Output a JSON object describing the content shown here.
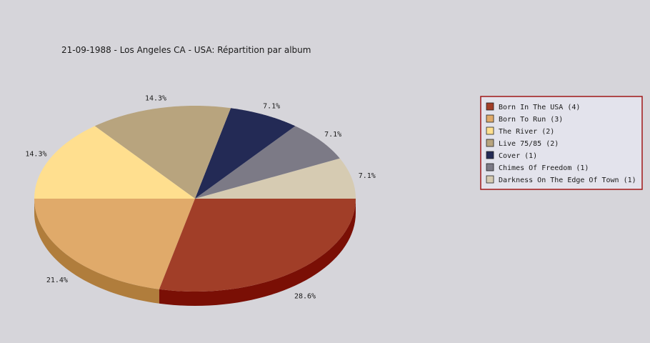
{
  "chart_data": {
    "type": "pie",
    "title": "21-09-1988 - Los Angeles CA - USA:  Répartition par album",
    "slices": [
      {
        "label": "Born In The USA",
        "count": 4,
        "percent": "28.6%",
        "color": "#a13e28",
        "side_color": "#7a0f05"
      },
      {
        "label": "Born To Run",
        "count": 3,
        "percent": "21.4%",
        "color": "#e0aa6a",
        "side_color": "#b07d3c"
      },
      {
        "label": "The River",
        "count": 2,
        "percent": "14.3%",
        "color": "#ffdf8f",
        "side_color": "#d0b266"
      },
      {
        "label": "Live 75/85",
        "count": 2,
        "percent": "14.3%",
        "color": "#b8a47e",
        "side_color": "#8c7b58"
      },
      {
        "label": "Cover",
        "count": 1,
        "percent": "7.1%",
        "color": "#232a55",
        "side_color": "#121630"
      },
      {
        "label": "Chimes Of Freedom",
        "count": 1,
        "percent": "7.1%",
        "color": "#7c7a86",
        "side_color": "#55535e"
      },
      {
        "label": "Darkness On The Edge Of Town",
        "count": 1,
        "percent": "7.1%",
        "color": "#d6cbb2",
        "side_color": "#aea48b"
      }
    ],
    "legend": {
      "position": "right",
      "entries": [
        "Born In The USA (4)",
        "Born To Run (3)",
        "The River (2)",
        "Live 75/85 (2)",
        "Cover (1)",
        "Chimes Of Freedom (1)",
        "Darkness On The Edge Of Town (1)"
      ],
      "border_color": "#a01818",
      "background": "#e3e3ec"
    }
  }
}
